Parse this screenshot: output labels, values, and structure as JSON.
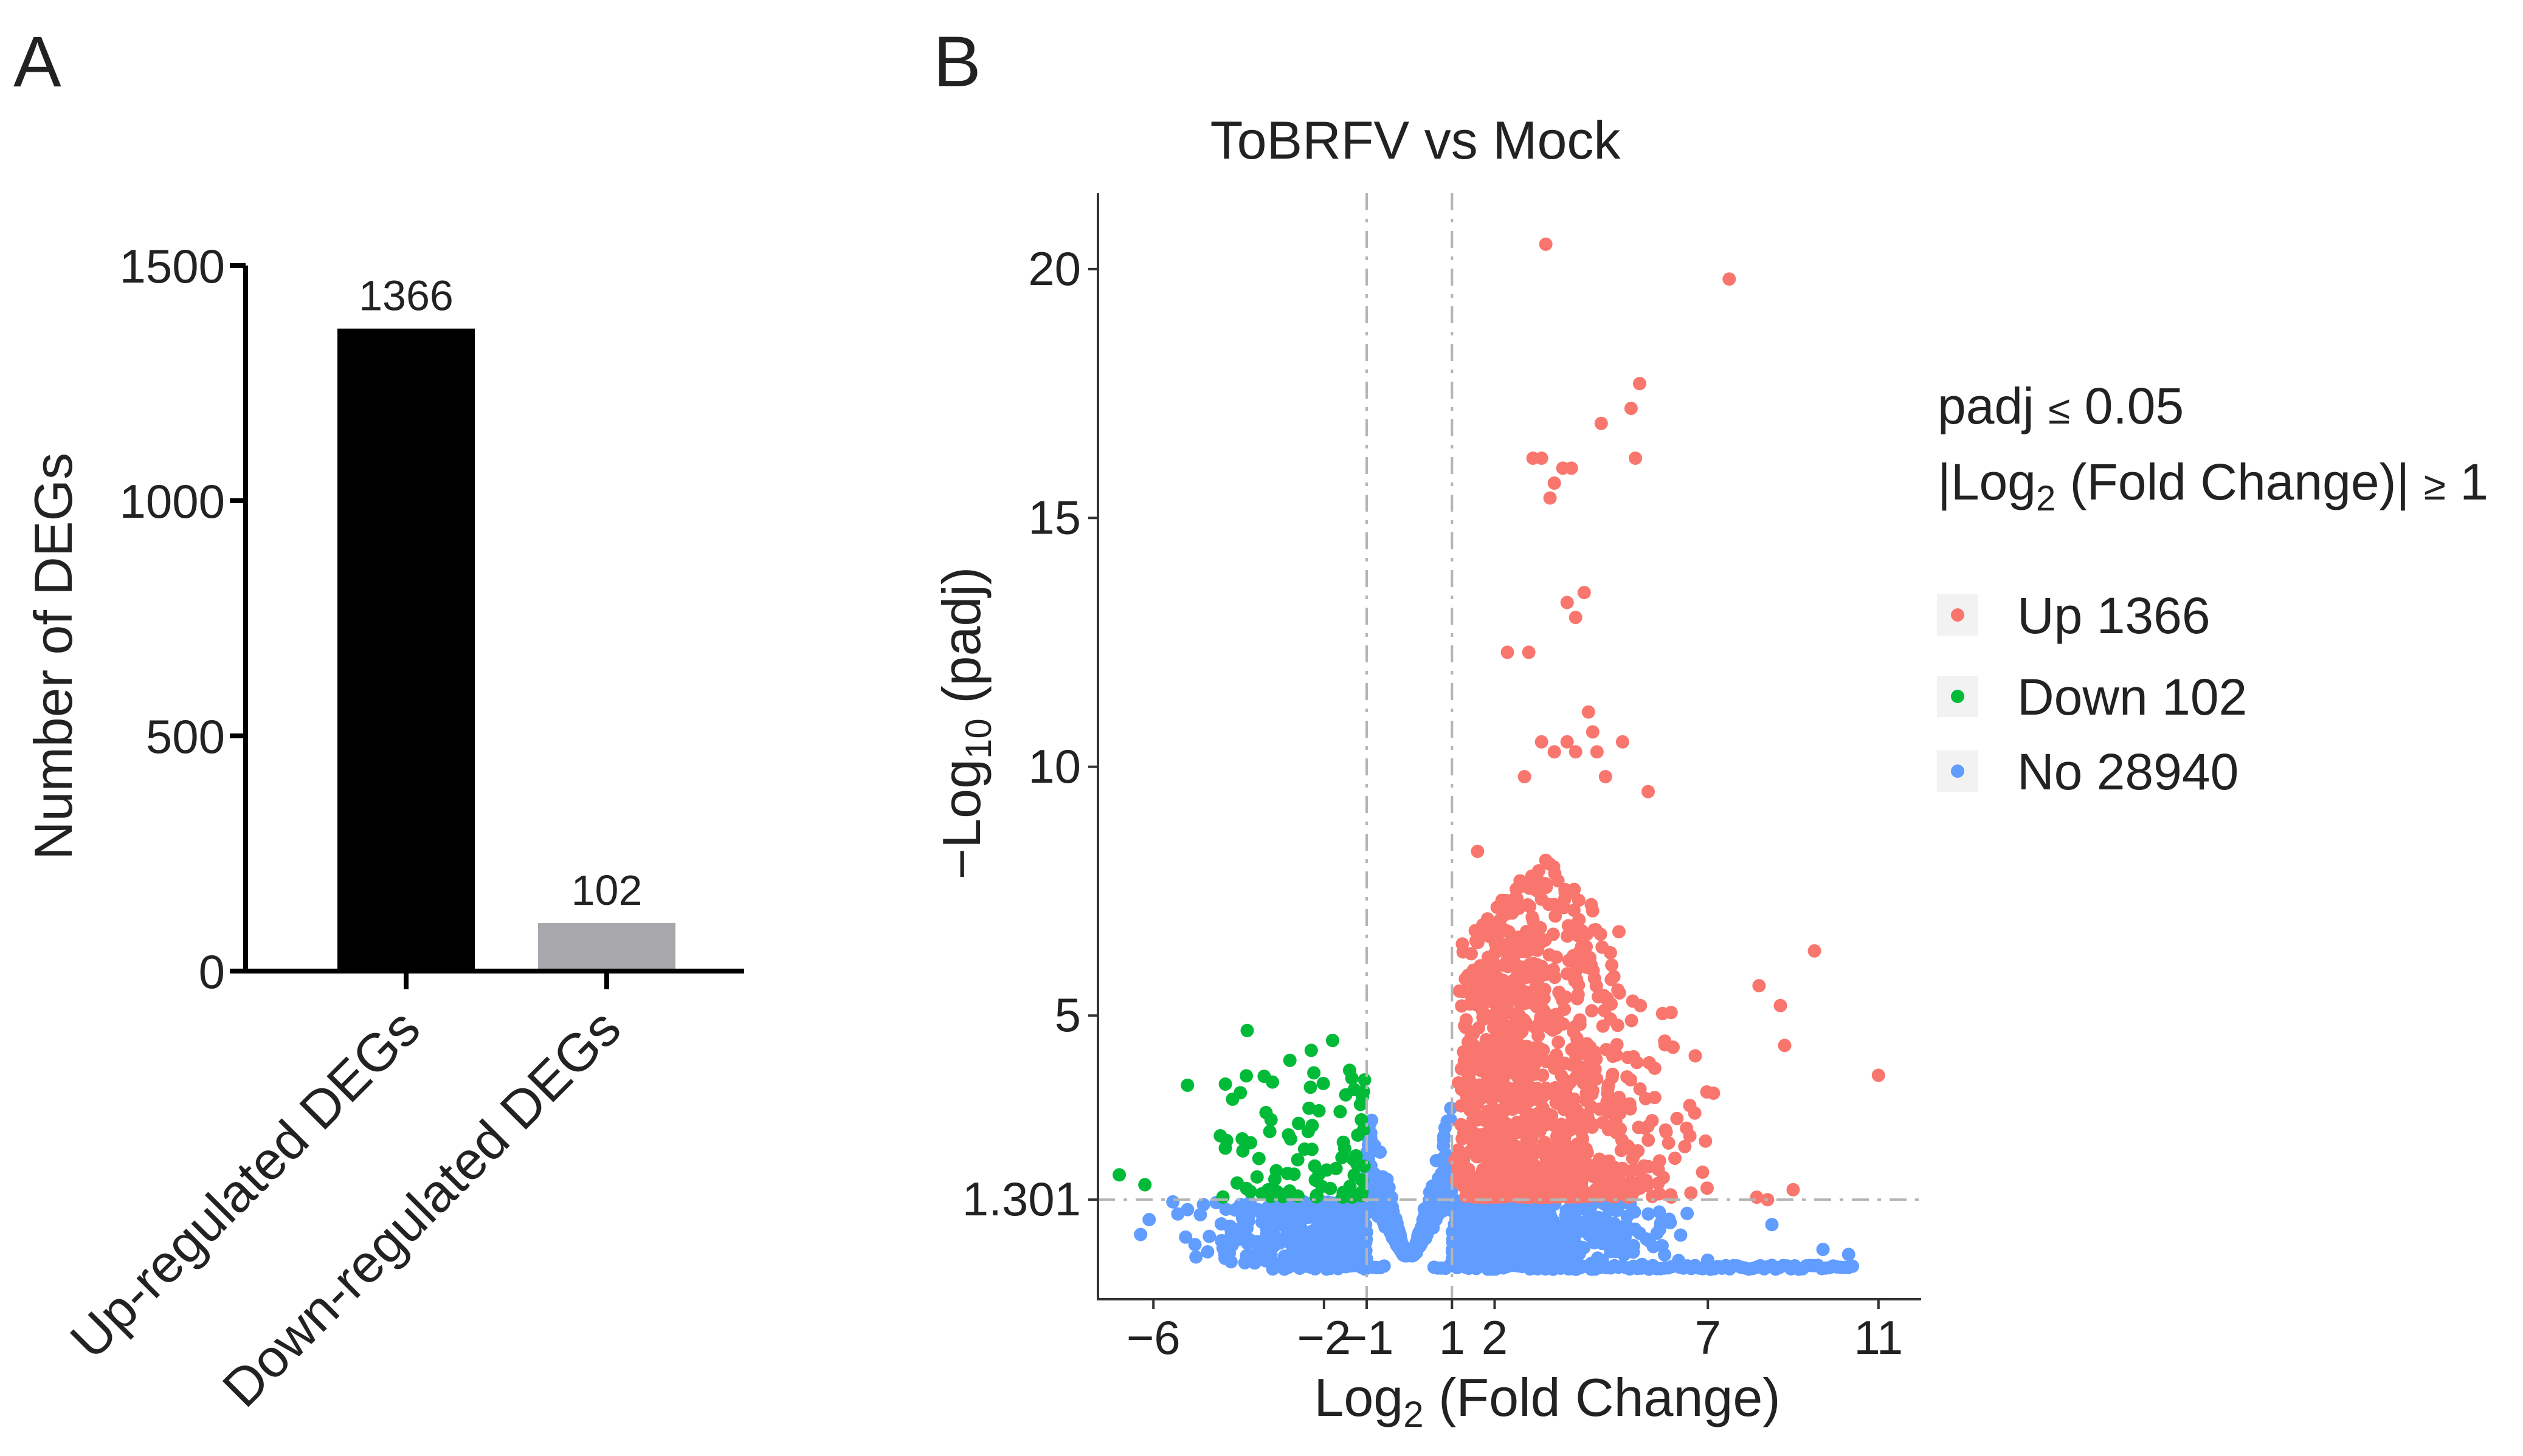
{
  "panels": {
    "a": {
      "label": "A"
    },
    "b": {
      "label": "B"
    }
  },
  "colors": {
    "up": "#f8766d",
    "down": "#00ba38",
    "no": "#619cff",
    "bar_up": "#000000",
    "bar_down": "#a8a7ac",
    "threshold": "#b5b5b5"
  },
  "chart_data": [
    {
      "type": "bar",
      "title": "",
      "xlabel": "",
      "ylabel": "Number of DEGs",
      "categories": [
        "Up-regulated DEGs",
        "Down-regulated DEGs"
      ],
      "values": [
        1366,
        102
      ],
      "value_labels": [
        "1366",
        "102"
      ],
      "ylim": [
        0,
        1500
      ],
      "yticks": [
        0,
        500,
        1000,
        1500
      ],
      "ytick_labels": [
        "0",
        "500",
        "1000",
        "1500"
      ],
      "grid": false
    },
    {
      "type": "scatter",
      "title": "ToBRFV vs Mock",
      "xlabel": {
        "main": "Log",
        "sub": "2",
        "rest": " (Fold Change)"
      },
      "ylabel": {
        "pre": "−Log",
        "sub": "10",
        "rest": " (padj)"
      },
      "xlim": [
        -7.3,
        12
      ],
      "ylim": [
        -0.7,
        21.5
      ],
      "xticks": [
        -6,
        -2,
        -1,
        1,
        2,
        7,
        11
      ],
      "xtick_labels": [
        "−6",
        "−2",
        "−1",
        "1",
        "2",
        "7",
        "11"
      ],
      "yticks": [
        1.301,
        5,
        10,
        15,
        20
      ],
      "ytick_labels": [
        "1.301",
        "5",
        "10",
        "15",
        "20"
      ],
      "thresholds": {
        "log2fc": [
          -1,
          1
        ],
        "neglog10_padj": 1.301
      },
      "legend": {
        "position": "right",
        "title_line1": {
          "pre": "padj ",
          "sym": "≤",
          "rest": " 0.05"
        },
        "title_line2": {
          "pre": "|Log",
          "sub": "2",
          "mid": " (Fold Change)| ",
          "sym": "≥",
          "rest": " 1"
        },
        "entries": [
          {
            "key": "up",
            "label": "Up 1366"
          },
          {
            "key": "down",
            "label": "Down 102"
          },
          {
            "key": "no",
            "label": "No 28940"
          }
        ]
      },
      "series": [
        {
          "name": "Up",
          "count": 1366,
          "highlighted": [
            [
              3.2,
              20.5
            ],
            [
              7.5,
              19.8
            ],
            [
              5.4,
              17.7
            ],
            [
              5.2,
              17.2
            ],
            [
              4.5,
              16.9
            ],
            [
              5.3,
              16.2
            ],
            [
              2.9,
              16.2
            ],
            [
              3.1,
              16.2
            ],
            [
              3.6,
              16.0
            ],
            [
              3.8,
              16.0
            ],
            [
              3.4,
              15.7
            ],
            [
              3.3,
              15.4
            ],
            [
              4.1,
              13.5
            ],
            [
              3.7,
              13.3
            ],
            [
              3.9,
              13.0
            ],
            [
              2.3,
              12.3
            ],
            [
              2.8,
              12.3
            ],
            [
              4.2,
              11.1
            ],
            [
              3.1,
              10.5
            ],
            [
              3.4,
              10.3
            ],
            [
              3.7,
              10.5
            ],
            [
              3.9,
              10.3
            ],
            [
              4.3,
              10.7
            ],
            [
              5.0,
              10.5
            ],
            [
              4.6,
              9.8
            ],
            [
              5.6,
              9.5
            ],
            [
              2.7,
              9.8
            ],
            [
              4.4,
              10.3
            ],
            [
              1.6,
              8.3
            ],
            [
              9.5,
              6.3
            ],
            [
              11.0,
              3.8
            ],
            [
              8.8,
              4.4
            ],
            [
              8.2,
              5.6
            ],
            [
              8.7,
              5.2
            ],
            [
              9.0,
              1.5
            ],
            [
              8.4,
              1.3
            ]
          ]
        },
        {
          "name": "Down",
          "count": 102,
          "highlighted": [
            [
              -3.8,
              4.7
            ],
            [
              -5.2,
              3.6
            ],
            [
              -2.3,
              4.3
            ],
            [
              -1.8,
              4.5
            ],
            [
              -2.8,
              4.1
            ],
            [
              -6.8,
              1.8
            ],
            [
              -6.2,
              1.6
            ],
            [
              -1.4,
              3.9
            ]
          ]
        },
        {
          "name": "No",
          "count": 28940,
          "highlighted": [
            [
              -6.1,
              0.9
            ],
            [
              -6.3,
              0.6
            ],
            [
              -5.2,
              1.1
            ],
            [
              -4.9,
              1.0
            ],
            [
              10.3,
              0.2
            ],
            [
              9.7,
              0.3
            ],
            [
              8.5,
              0.8
            ]
          ]
        }
      ]
    }
  ]
}
